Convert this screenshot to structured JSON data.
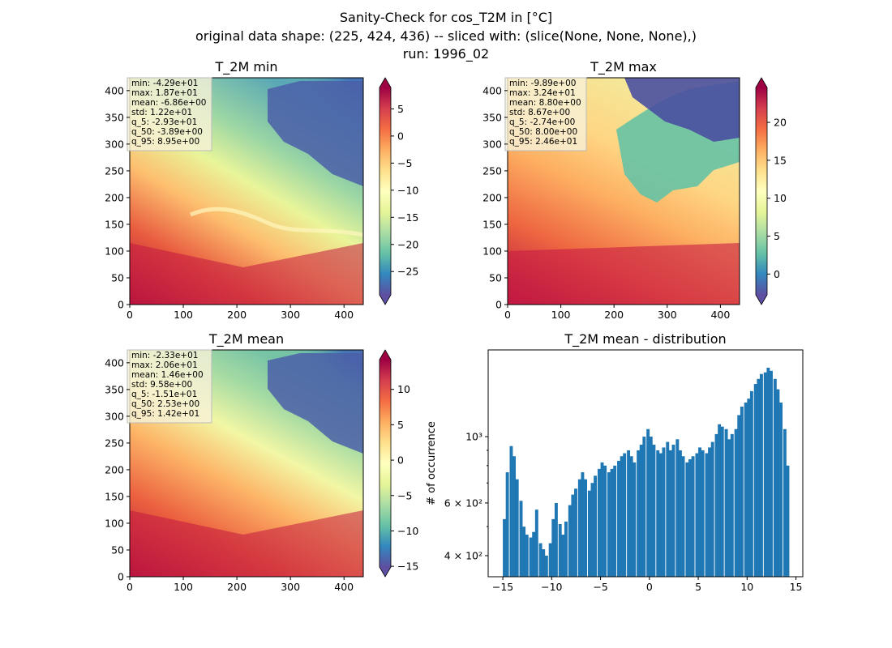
{
  "figure": {
    "title_line1": "Sanity-Check for cos_T2M in [°C]",
    "title_line2": "original data shape: (225, 424, 436) -- sliced with: (slice(None, None, None),)",
    "title_line3": "run: 1996_02"
  },
  "chart_data": [
    {
      "type": "heatmap",
      "title": "T_2M min",
      "xlim": [
        0,
        436
      ],
      "ylim": [
        0,
        424
      ],
      "x_ticks": [
        0,
        100,
        200,
        300,
        400
      ],
      "y_ticks": [
        0,
        50,
        100,
        150,
        200,
        250,
        300,
        350,
        400
      ],
      "colorbar": {
        "cmap": "Spectral_r",
        "vmin": -29.3,
        "vmax": 8.95,
        "ticks": [
          -25,
          -20,
          -15,
          -10,
          -5,
          0,
          5
        ],
        "extend": "both"
      },
      "stats": [
        "min: -4.29e+01",
        "max: 1.87e+01",
        "mean: -6.86e+00",
        "std: 1.22e+01",
        "q_5: -2.93e+01",
        "q_50: -3.89e+00",
        "q_95: 8.95e+00"
      ]
    },
    {
      "type": "heatmap",
      "title": "T_2M max",
      "xlim": [
        0,
        436
      ],
      "ylim": [
        0,
        424
      ],
      "x_ticks": [
        0,
        100,
        200,
        300,
        400
      ],
      "y_ticks": [
        0,
        50,
        100,
        150,
        200,
        250,
        300,
        350,
        400
      ],
      "colorbar": {
        "cmap": "Spectral_r",
        "vmin": -2.74,
        "vmax": 24.6,
        "ticks": [
          0,
          5,
          10,
          15,
          20
        ],
        "extend": "both"
      },
      "stats": [
        "min: -9.89e+00",
        "max: 3.24e+01",
        "mean: 8.80e+00",
        "std: 8.67e+00",
        "q_5: -2.74e+00",
        "q_50: 8.00e+00",
        "q_95: 2.46e+01"
      ]
    },
    {
      "type": "heatmap",
      "title": "T_2M mean",
      "xlim": [
        0,
        436
      ],
      "ylim": [
        0,
        424
      ],
      "x_ticks": [
        0,
        100,
        200,
        300,
        400
      ],
      "y_ticks": [
        0,
        50,
        100,
        150,
        200,
        250,
        300,
        350,
        400
      ],
      "colorbar": {
        "cmap": "Spectral_r",
        "vmin": -15.1,
        "vmax": 14.2,
        "ticks": [
          -15,
          -10,
          -5,
          0,
          5,
          10
        ],
        "extend": "both"
      },
      "stats": [
        "min: -2.33e+01",
        "max: 2.06e+01",
        "mean: 1.46e+00",
        "std: 9.58e+00",
        "q_5: -1.51e+01",
        "q_50: 2.53e+00",
        "q_95: 1.42e+01"
      ]
    },
    {
      "type": "bar",
      "title": "T_2M mean - distribution",
      "ylabel": "# of occurrence",
      "xlabel": "",
      "yscale": "log",
      "xlim": [
        -16.5,
        15.7
      ],
      "ylim": [
        340,
        1950
      ],
      "x_ticks": [
        -15,
        -10,
        -5,
        0,
        5,
        10,
        15
      ],
      "y_ticks": [
        {
          "value": 400,
          "label": "4 × 10²"
        },
        {
          "value": 600,
          "label": "6 × 10²"
        },
        {
          "value": 1000,
          "label": "10³"
        }
      ],
      "color": "#1f77b4",
      "x": [
        -15.0,
        -14.7,
        -14.3,
        -14.0,
        -13.7,
        -13.3,
        -13.0,
        -12.7,
        -12.3,
        -12.0,
        -11.7,
        -11.3,
        -11.0,
        -10.7,
        -10.3,
        -10.0,
        -9.7,
        -9.3,
        -9.0,
        -8.7,
        -8.3,
        -8.0,
        -7.7,
        -7.3,
        -7.0,
        -6.7,
        -6.3,
        -6.0,
        -5.7,
        -5.3,
        -5.0,
        -4.7,
        -4.3,
        -4.0,
        -3.7,
        -3.3,
        -3.0,
        -2.7,
        -2.3,
        -2.0,
        -1.7,
        -1.3,
        -1.0,
        -0.7,
        -0.3,
        0.0,
        0.3,
        0.7,
        1.0,
        1.3,
        1.7,
        2.0,
        2.3,
        2.7,
        3.0,
        3.3,
        3.7,
        4.0,
        4.3,
        4.7,
        5.0,
        5.3,
        5.7,
        6.0,
        6.3,
        6.7,
        7.0,
        7.3,
        7.7,
        8.0,
        8.3,
        8.7,
        9.0,
        9.3,
        9.7,
        10.0,
        10.3,
        10.7,
        11.0,
        11.3,
        11.7,
        12.0,
        12.3,
        12.7,
        13.0,
        13.3,
        13.7,
        14.0
      ],
      "values": [
        530,
        760,
        930,
        860,
        720,
        610,
        500,
        470,
        460,
        480,
        570,
        440,
        420,
        400,
        440,
        530,
        600,
        510,
        470,
        520,
        590,
        640,
        670,
        720,
        760,
        720,
        660,
        700,
        740,
        780,
        820,
        800,
        760,
        780,
        800,
        830,
        860,
        880,
        900,
        860,
        820,
        900,
        940,
        1000,
        1060,
        1000,
        940,
        900,
        880,
        920,
        960,
        900,
        940,
        980,
        900,
        860,
        820,
        840,
        860,
        880,
        920,
        900,
        880,
        920,
        960,
        1020,
        1100,
        1080,
        1060,
        980,
        1020,
        1060,
        1180,
        1260,
        1300,
        1340,
        1420,
        1500,
        1560,
        1620,
        1640,
        1700,
        1660,
        1560,
        1440,
        1300,
        1060,
        800
      ]
    }
  ]
}
